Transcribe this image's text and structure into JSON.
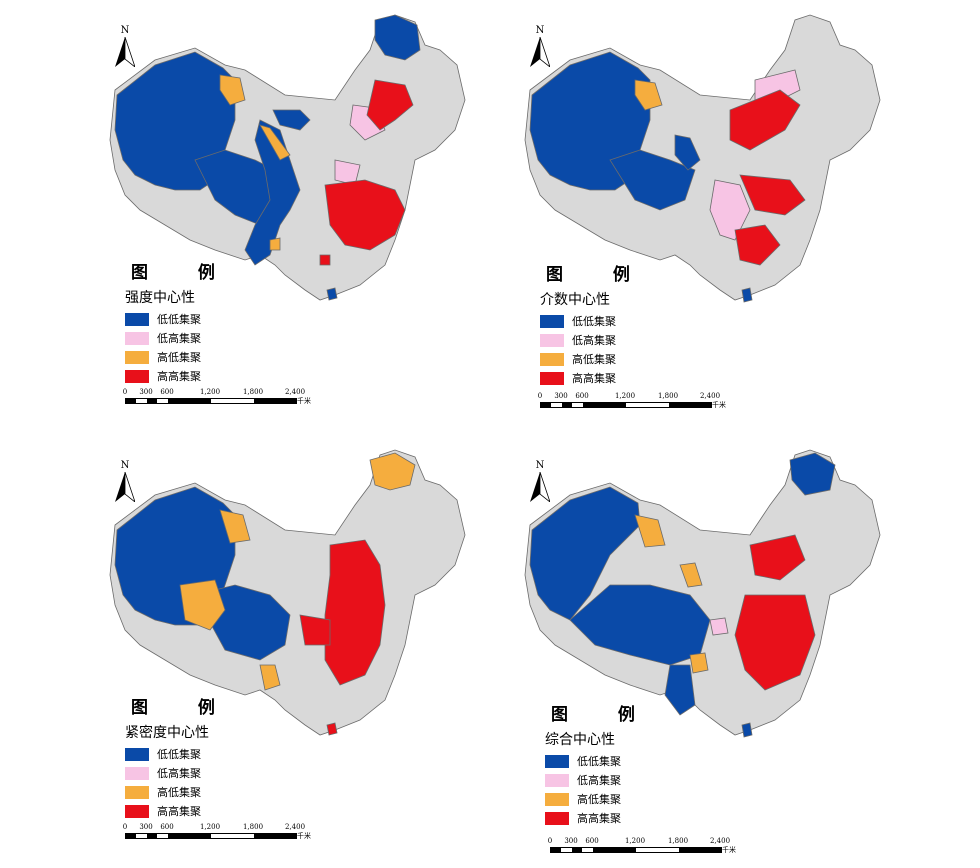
{
  "legend_head": "图    例",
  "scale": {
    "ticks": [
      "0",
      "300",
      "600",
      "1,200",
      "1,800",
      "2,400"
    ],
    "unit": "千米"
  },
  "north_letter": "N",
  "categories": [
    {
      "label": "低低集聚",
      "color": "#0a4aa8"
    },
    {
      "label": "低高集聚",
      "color": "#f7c4e4"
    },
    {
      "label": "高低集聚",
      "color": "#f5ad3e"
    },
    {
      "label": "高高集聚",
      "color": "#e8101a"
    }
  ],
  "base_color": "#d9d9d9",
  "panels": [
    {
      "title": "强度中心性"
    },
    {
      "title": "介数中心性"
    },
    {
      "title": "紧密度中心性"
    },
    {
      "title": "综合中心性"
    }
  ]
}
